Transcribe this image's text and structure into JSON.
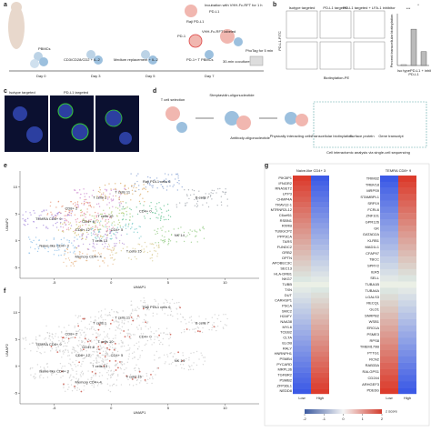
{
  "panel_labels": [
    "a",
    "b",
    "c",
    "d",
    "e",
    "f",
    "g"
  ],
  "panel_a": {
    "texts": [
      "Day 0",
      "Day 3",
      "Day 5",
      "Day 7",
      "PBMCs",
      "CD3/CD28/CD2 + IL-2",
      "Medium replacement + IL-2",
      "Raji PD-L1",
      "Incubation with VHH-Fc-RFT for 1 h",
      "PD-L1",
      "VHH-Fc-RFT labeled",
      "PD-1",
      "PD-1+ T PBMCs",
      "30-min coculture",
      "PhoTag for 5 min"
    ]
  },
  "panel_b": {
    "flow_titles": [
      "Isotype targeted",
      "PD-L1 targeted",
      "PD-L1 targeted + LFA-1 inhibitor"
    ],
    "x_label": "Biotinylation-PE",
    "y_label": "PD-L1-FITC",
    "bar": {
      "type": "bar",
      "y_label": "Percent transcellular biotinylation",
      "categories": [
        "Iso type",
        "PD-L1",
        "PD-L1 + inhibitor"
      ],
      "values": [
        0.1,
        4.2,
        1.6
      ],
      "ylim": [
        0,
        6
      ],
      "color": "#444444",
      "annotations": [
        "***",
        "*"
      ]
    }
  },
  "panel_c": {
    "titles": [
      "Isotype targeted",
      "PD-L1 targeted"
    ]
  },
  "panel_d": {
    "texts": [
      "T cell selection",
      "Streptavidin-oligonucleotide",
      "Antibody-oligonucleotide",
      "Physically interacting cells",
      "Transcellular biotinylation",
      "Surface protein",
      "Gene transcript",
      "Cell interactomic analysis via single-cell sequencing"
    ]
  },
  "panel_e": {
    "x_label": "UMAP1",
    "y_label": "UMAP2",
    "xlim": [
      -8,
      13
    ],
    "ylim": [
      -7,
      13
    ],
    "xticks": [
      -5,
      0,
      5,
      10
    ],
    "yticks": [
      -5,
      0,
      5,
      10
    ],
    "clusters": [
      "Raji PDL1 cells 6",
      "T cells 1",
      "B cells 7",
      "CD4+ 0",
      "CD8+ 2",
      "T cells 10",
      "T cells 11",
      "CD4+ 5",
      "CD4+ 8",
      "TEMRA CD8+ 9",
      "CD8+ 12",
      "Naive-like CD4+ 3",
      "Memory CD4+ 4",
      "NK 14",
      "T cells 13",
      "T cells 15"
    ]
  },
  "panel_f": {
    "x_label": "UMAP1",
    "y_label": "UMAP2",
    "xlim": [
      -8,
      13
    ],
    "ylim": [
      -7,
      13
    ],
    "xticks": [
      -5,
      0,
      5,
      10
    ],
    "yticks": [
      -5,
      0,
      5,
      10
    ],
    "clusters": [
      "Raji PDL1 cells 6",
      "T cells 1",
      "B cells 7",
      "CD4+ 0",
      "CD8+ 2",
      "T cells 10",
      "T cells 11",
      "CD4+ 5",
      "CD4+ 8",
      "TEMRA CD8+ 9",
      "CD8+ 12",
      "Naive-like CD4+ 3",
      "Memory CD4+ 4",
      "NK 14",
      "T cells 13",
      "T cells 15"
    ]
  },
  "panel_g": {
    "left_title": "Naive-like CD4+ 3",
    "right_title": "TEMRA CD8+ 9",
    "left_genes": [
      "PIK3IP1",
      "IFNGR2",
      "RNASET2",
      "UTP3",
      "CHMP4A",
      "TRAV12-1",
      "MTRNR2L12",
      "C6orf61",
      "RSBN1",
      "RXRB",
      "TUBGCP2",
      "PPP3CA",
      "TARS",
      "FUNDC2",
      "GRB2",
      "OPTN",
      "APOBEC3C",
      "SEC13",
      "HLA-DRB1",
      "NKG7",
      "TUBB",
      "TXN",
      "DUT",
      "CARHSP1",
      "PSCA",
      "SMC2",
      "H2AFY",
      "NAA38",
      "MYL6",
      "TCEB2",
      "CLTA",
      "ELOB",
      "RALY",
      "HNRNPH1",
      "PSMB4",
      "PYCARD",
      "MRPL36",
      "TGFBR2",
      "PSMB2",
      "ZFP36L1",
      "NEDD8"
    ],
    "right_genes": [
      "TRIM32",
      "TRBV18",
      "MRPS9",
      "STAMBPL1",
      "SRP19",
      "FCRL6",
      "ZNF101",
      "GPR126",
      "GK",
      "GATAD2A",
      "KLRB1",
      "MAD1L1",
      "CFAP97",
      "TBCC",
      "SPRY2",
      "IER5",
      "SELL",
      "TUBA1B",
      "TUBA4A",
      "LGALS3",
      "RECQL",
      "GLO1",
      "SNRPB2",
      "WSB1",
      "ERO1A",
      "PSME3",
      "RPS8",
      "TMEM179B",
      "PTTG1",
      "RCN2",
      "RAB33A",
      "RALGPS1",
      "CD244",
      "ARHGEF3",
      "PDE6G"
    ],
    "columns": [
      "Low",
      "High"
    ],
    "colorbar_ticks": [
      -2,
      -1,
      0,
      1,
      2
    ],
    "colorbar_label": "z score"
  }
}
